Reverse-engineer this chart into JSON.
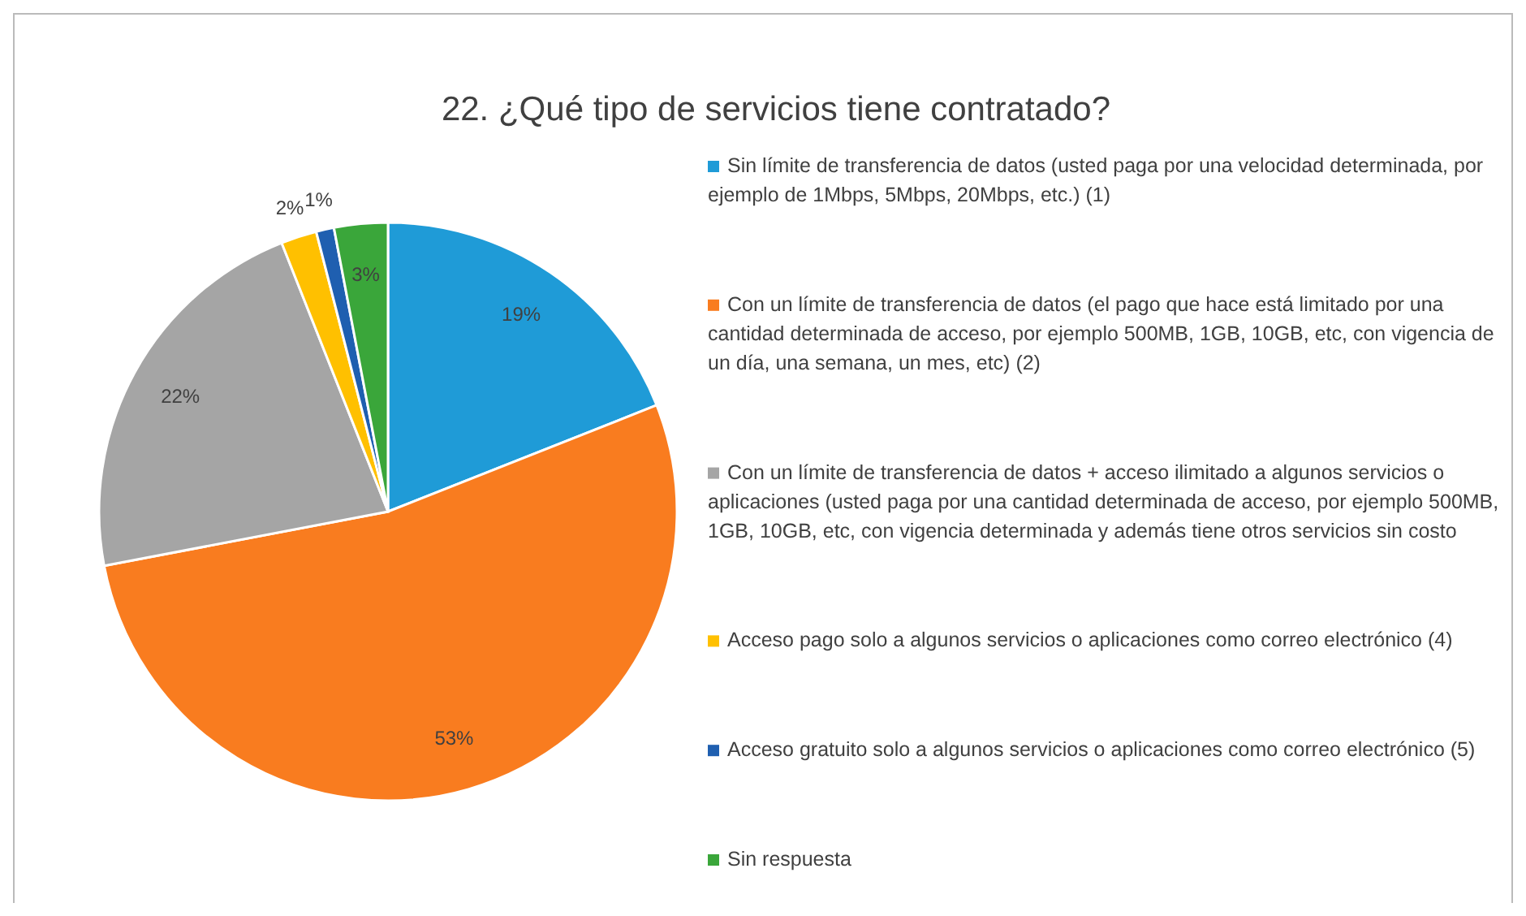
{
  "chart_data": {
    "type": "pie",
    "title": "22. ¿Qué tipo de servicios tiene contratado?",
    "categories": [
      "Sin límite de transferencia de datos (usted paga por una velocidad determinada, por ejemplo de 1Mbps, 5Mbps, 20Mbps, etc.) (1)",
      "Con un límite de transferencia de datos (el pago que hace está limitado por una cantidad determinada de acceso, por ejemplo 500MB, 1GB, 10GB, etc, con vigencia de un día, una semana, un mes, etc) (2)",
      "Con un límite de transferencia de datos + acceso ilimitado a algunos servicios o aplicaciones (usted paga por una cantidad determinada de acceso, por ejemplo 500MB, 1GB, 10GB, etc, con vigencia determinada y además tiene otros servicios sin costo",
      "Acceso pago solo a algunos servicios o aplicaciones como correo electrónico (4)",
      "Acceso gratuito solo a algunos servicios o aplicaciones como correo electrónico (5)",
      "Sin respuesta"
    ],
    "values": [
      19,
      53,
      22,
      2,
      1,
      3
    ],
    "colors": [
      "#1f9bd7",
      "#f97c1f",
      "#a5a5a5",
      "#ffc000",
      "#1f5fb0",
      "#3aa63a"
    ],
    "value_labels": [
      "19%",
      "53%",
      "22%",
      "2%",
      "1%",
      "3%"
    ],
    "legend": "right"
  }
}
